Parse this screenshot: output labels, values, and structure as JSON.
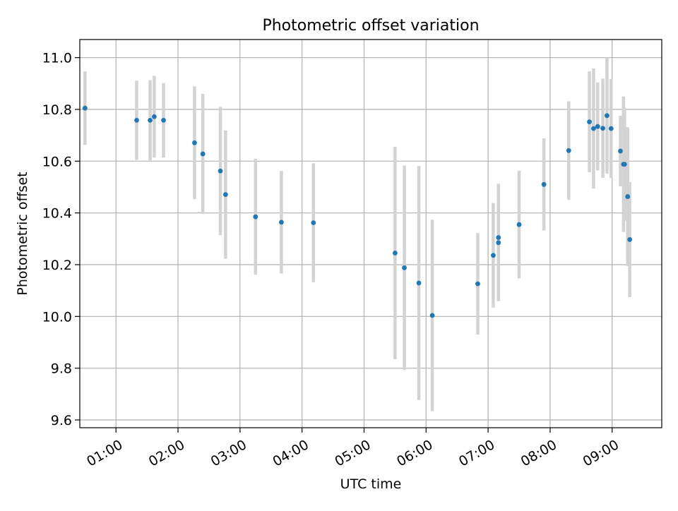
{
  "chart_data": {
    "type": "scatter",
    "title": "Photometric offset variation",
    "xlabel": "UTC time",
    "ylabel": "Photometric offset",
    "xlim": [
      "00:25",
      "09:48"
    ],
    "ylim": [
      9.57,
      11.07
    ],
    "x_ticks": [
      "01:00",
      "02:00",
      "03:00",
      "04:00",
      "05:00",
      "06:00",
      "07:00",
      "08:00",
      "09:00"
    ],
    "y_ticks": [
      "9.6",
      "9.8",
      "10.0",
      "10.2",
      "10.4",
      "10.6",
      "10.8",
      "11.0"
    ],
    "grid": true,
    "colors": {
      "point": "#1f77b4",
      "errorbar": "#d3d3d3",
      "grid": "#b0b0b0",
      "axes": "#000000"
    },
    "points": [
      {
        "x": "00:30",
        "y": 10.805,
        "yerr": 0.142
      },
      {
        "x": "01:20",
        "y": 10.758,
        "yerr": 0.153
      },
      {
        "x": "01:33",
        "y": 10.758,
        "yerr": 0.155
      },
      {
        "x": "01:37",
        "y": 10.772,
        "yerr": 0.158
      },
      {
        "x": "01:46",
        "y": 10.758,
        "yerr": 0.144
      },
      {
        "x": "02:16",
        "y": 10.671,
        "yerr": 0.218
      },
      {
        "x": "02:24",
        "y": 10.628,
        "yerr": 0.232
      },
      {
        "x": "02:41",
        "y": 10.562,
        "yerr": 0.248
      },
      {
        "x": "02:46",
        "y": 10.471,
        "yerr": 0.248
      },
      {
        "x": "03:15",
        "y": 10.385,
        "yerr": 0.224
      },
      {
        "x": "03:40",
        "y": 10.364,
        "yerr": 0.198
      },
      {
        "x": "04:11",
        "y": 10.362,
        "yerr": 0.23
      },
      {
        "x": "05:30",
        "y": 10.245,
        "yerr": 0.41
      },
      {
        "x": "05:39",
        "y": 10.188,
        "yerr": 0.395
      },
      {
        "x": "05:53",
        "y": 10.129,
        "yerr": 0.452
      },
      {
        "x": "06:06",
        "y": 10.004,
        "yerr": 0.37
      },
      {
        "x": "06:50",
        "y": 10.126,
        "yerr": 0.196
      },
      {
        "x": "07:05",
        "y": 10.236,
        "yerr": 0.202
      },
      {
        "x": "07:10",
        "y": 10.285,
        "yerr": 0.226
      },
      {
        "x": "07:10",
        "y": 10.305,
        "yerr": 0.208
      },
      {
        "x": "07:30",
        "y": 10.355,
        "yerr": 0.208
      },
      {
        "x": "07:54",
        "y": 10.51,
        "yerr": 0.178
      },
      {
        "x": "08:18",
        "y": 10.641,
        "yerr": 0.19
      },
      {
        "x": "08:38",
        "y": 10.752,
        "yerr": 0.195
      },
      {
        "x": "08:42",
        "y": 10.726,
        "yerr": 0.232
      },
      {
        "x": "08:46",
        "y": 10.734,
        "yerr": 0.17
      },
      {
        "x": "08:51",
        "y": 10.727,
        "yerr": 0.192
      },
      {
        "x": "08:55",
        "y": 10.776,
        "yerr": 0.224
      },
      {
        "x": "08:59",
        "y": 10.726,
        "yerr": 0.192
      },
      {
        "x": "09:08",
        "y": 10.639,
        "yerr": 0.136
      },
      {
        "x": "09:11",
        "y": 10.588,
        "yerr": 0.262
      },
      {
        "x": "09:12",
        "y": 10.588,
        "yerr": 0.218
      },
      {
        "x": "09:15",
        "y": 10.463,
        "yerr": 0.268
      },
      {
        "x": "09:17",
        "y": 10.297,
        "yerr": 0.222
      }
    ]
  }
}
